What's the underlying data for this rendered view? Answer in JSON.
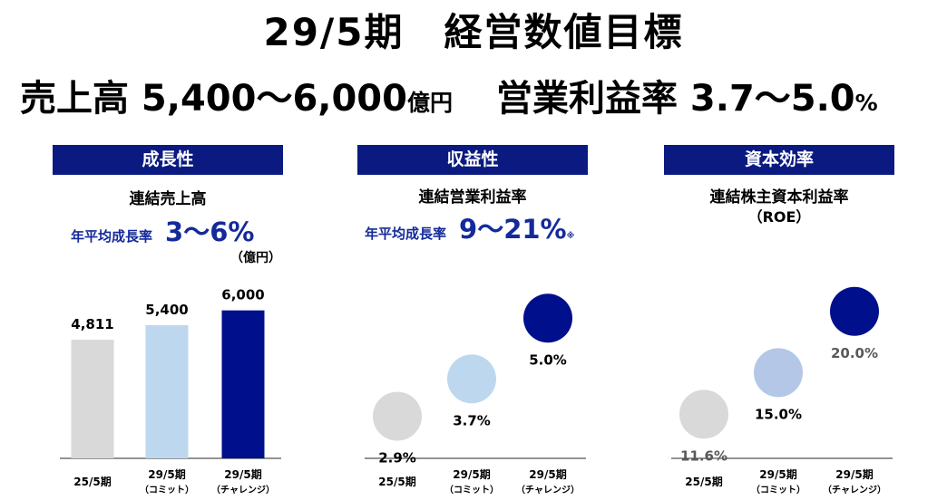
{
  "title": "29/5期　経営数値目標",
  "subtitle": {
    "sales_label": "売上高 5,400～6,000",
    "sales_unit": "億円",
    "margin_label": "営業利益率 3.7～5.0",
    "margin_unit": "%"
  },
  "panels": [
    {
      "header": "成長性",
      "metric": "連結売上高",
      "growth_label": "年平均成長率",
      "growth_value": "3～6%",
      "unit_note": "（億円）"
    },
    {
      "header": "収益性",
      "metric": "連結営業利益率",
      "growth_label": "年平均成長率",
      "growth_value": "9～21%",
      "growth_mark": "※"
    },
    {
      "header": "資本効率",
      "metric_line1": "連結株主資本利益率",
      "metric_line2": "（ROE）"
    }
  ],
  "chart_data": [
    {
      "type": "bar",
      "title": "連結売上高",
      "categories": [
        {
          "line1": "25/5期",
          "line2": ""
        },
        {
          "line1": "29/5期",
          "line2": "（コミット）"
        },
        {
          "line1": "29/5期",
          "line2": "（チャレンジ）"
        }
      ],
      "values": [
        4811,
        5400,
        6000
      ],
      "value_labels": [
        "4,811",
        "5,400",
        "6,000"
      ],
      "colors": [
        "#d9d9d9",
        "#bdd7ee",
        "#000f8c"
      ],
      "label_colors": [
        "#000000",
        "#000000",
        "#000000"
      ],
      "ylim": [
        0,
        7200
      ],
      "unit": "（億円）"
    },
    {
      "type": "scatter",
      "title": "連結営業利益率",
      "categories": [
        {
          "line1": "25/5期",
          "line2": ""
        },
        {
          "line1": "29/5期",
          "line2": "（コミット）"
        },
        {
          "line1": "29/5期",
          "line2": "（チャレンジ）"
        }
      ],
      "values": [
        2.9,
        3.7,
        5.0
      ],
      "value_labels": [
        "2.9%",
        "3.7%",
        "5.0%"
      ],
      "colors": [
        "#d9d9d9",
        "#bdd7ee",
        "#000f8c"
      ],
      "label_colors": [
        "#000000",
        "#000000",
        "#000000"
      ],
      "ylim": [
        2.0,
        5.8
      ]
    },
    {
      "type": "scatter",
      "title": "連結株主資本利益率（ROE）",
      "categories": [
        {
          "line1": "25/5期",
          "line2": ""
        },
        {
          "line1": "29/5期",
          "line2": "（コミット）"
        },
        {
          "line1": "29/5期",
          "line2": "（チャレンジ）"
        }
      ],
      "values": [
        11.6,
        15.0,
        20.0
      ],
      "value_labels": [
        "11.6%",
        "15.0%",
        "20.0%"
      ],
      "colors": [
        "#d9d9d9",
        "#b4c7e7",
        "#000f8c"
      ],
      "label_colors": [
        "#595959",
        "#000000",
        "#595959"
      ],
      "ylim": [
        8.0,
        22.5
      ]
    }
  ]
}
